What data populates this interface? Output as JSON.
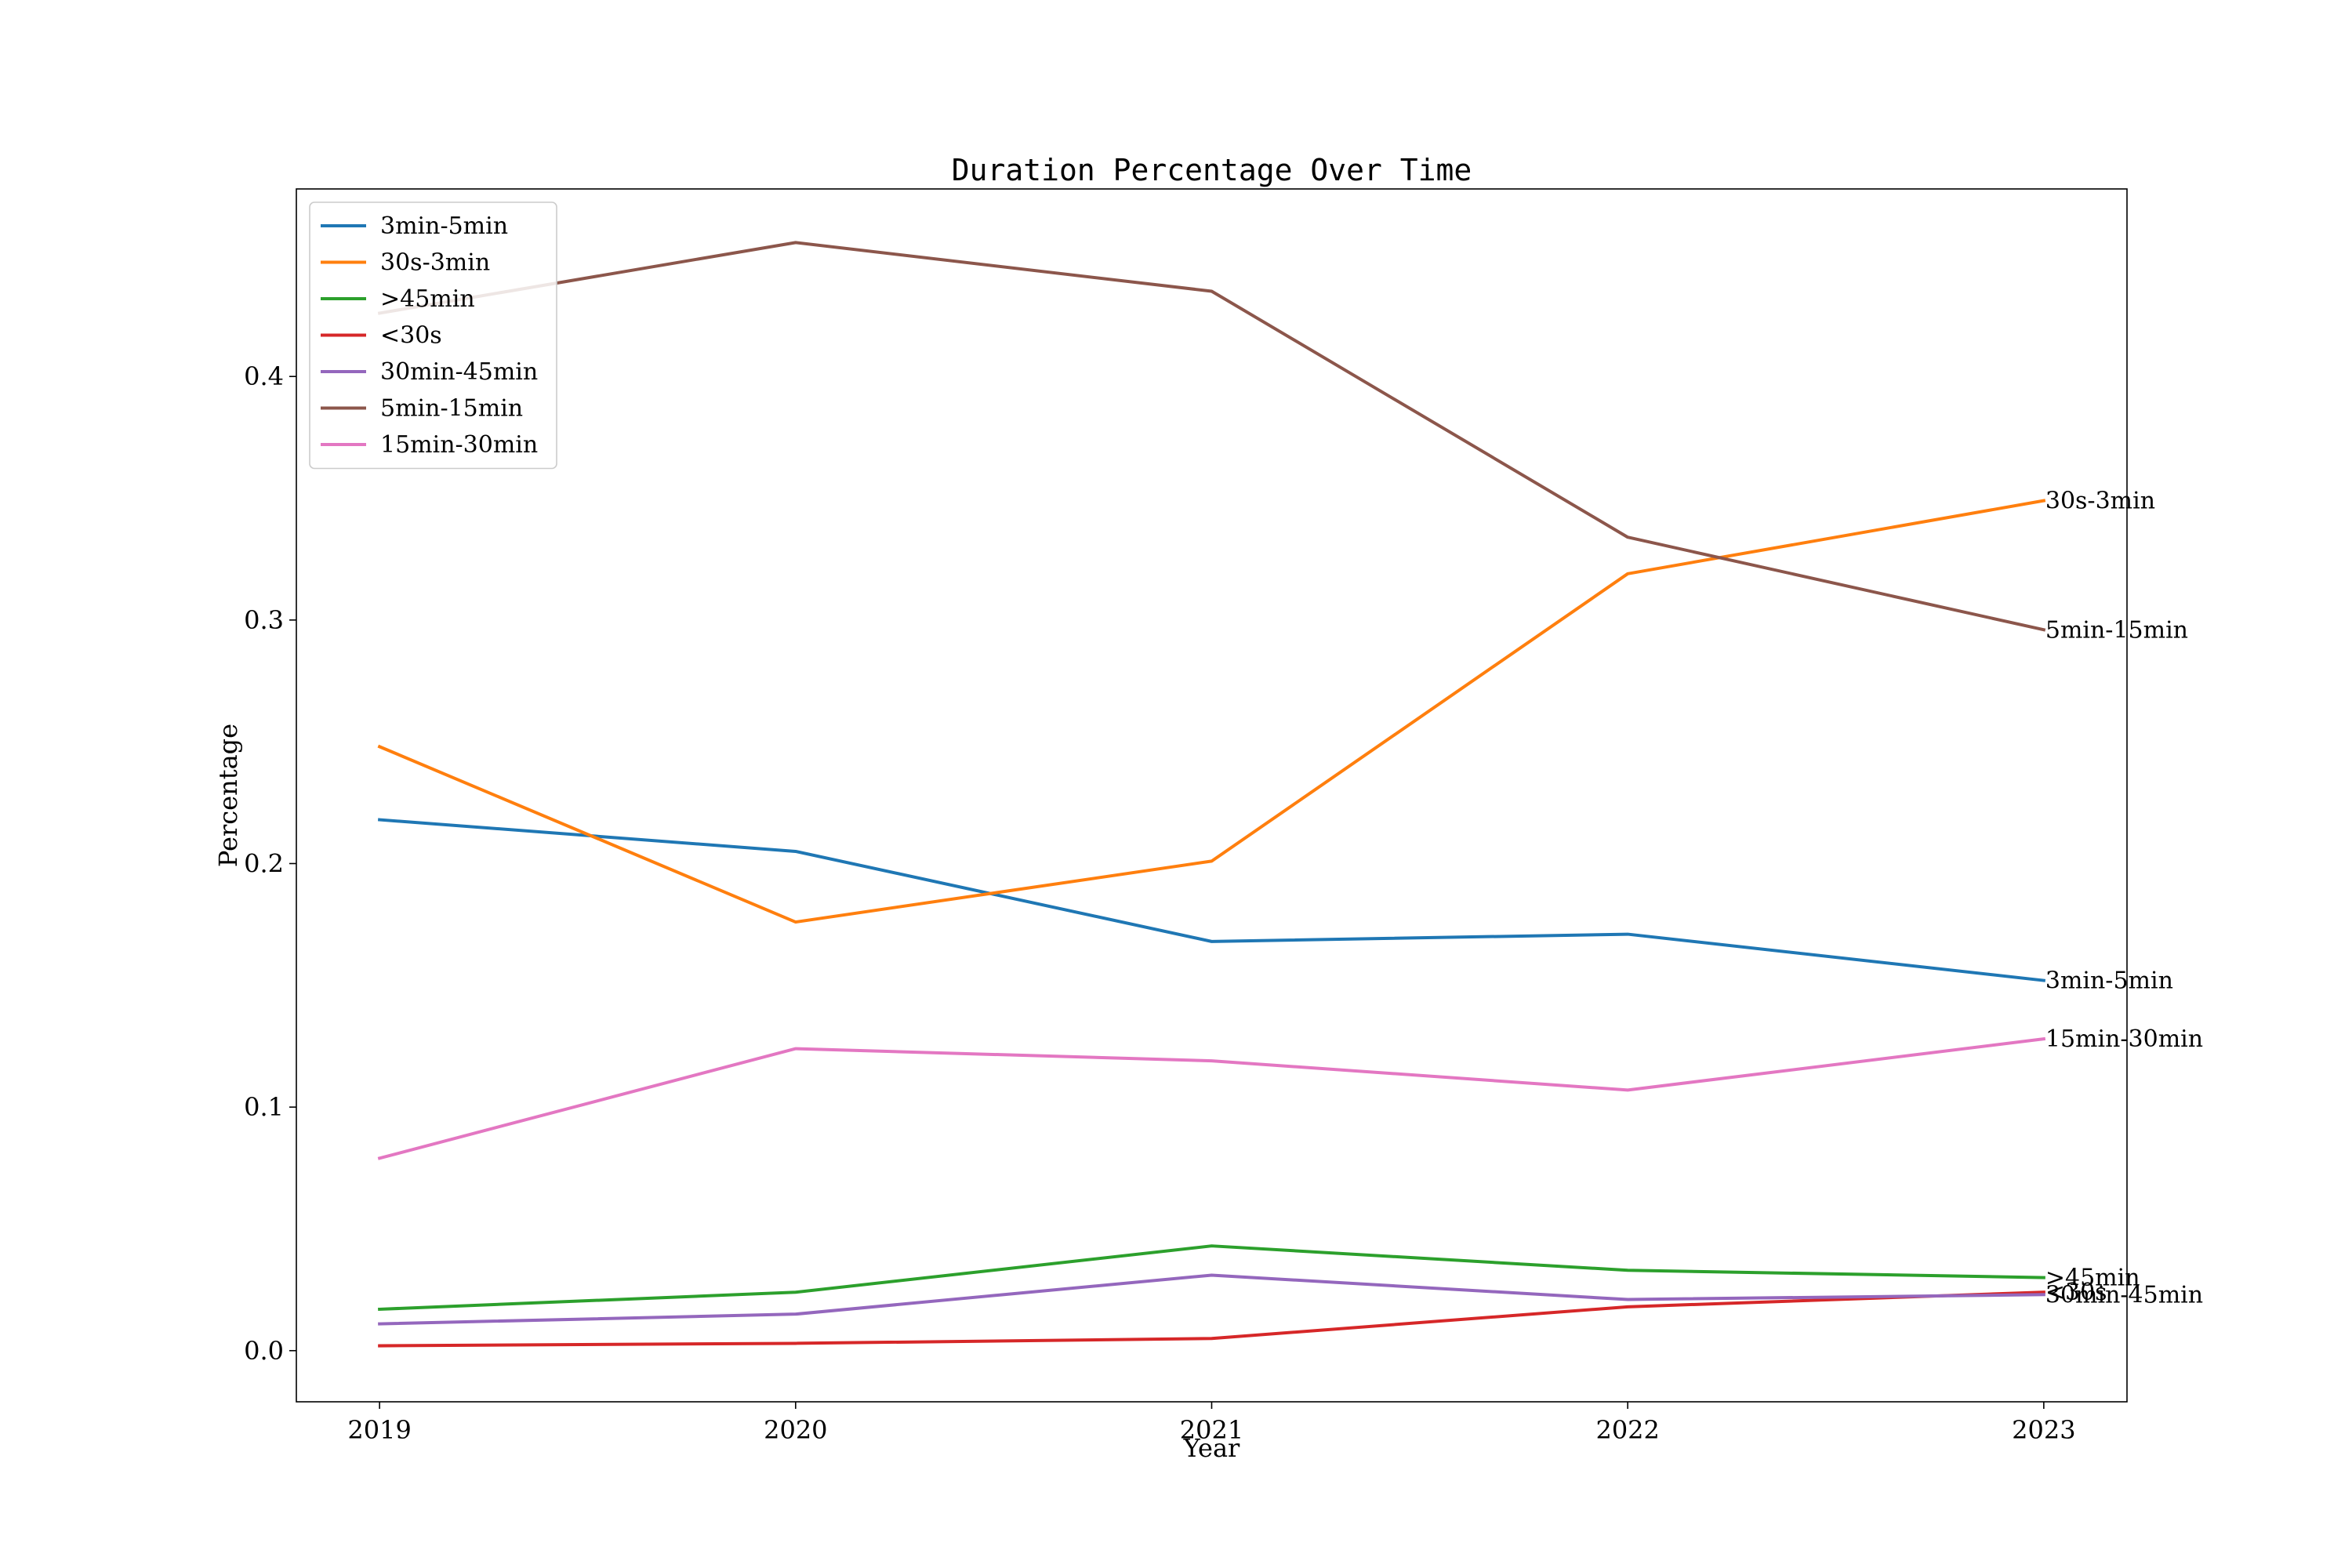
{
  "chart_data": {
    "type": "line",
    "title": "Duration Percentage Over Time",
    "xlabel": "Year",
    "ylabel": "Percentage",
    "x": [
      "2019",
      "2020",
      "2021",
      "2022",
      "2023"
    ],
    "xlim": [
      2018.8,
      2023.2
    ],
    "ylim": [
      -0.021,
      0.477
    ],
    "yticks": [
      "0.0",
      "0.1",
      "0.2",
      "0.3",
      "0.4"
    ],
    "ytick_values": [
      0.0,
      0.1,
      0.2,
      0.3,
      0.4
    ],
    "grid": false,
    "legend_position": "top-left",
    "series": [
      {
        "name": "3min-5min",
        "color": "#1f77b4",
        "values": [
          0.218,
          0.205,
          0.168,
          0.171,
          0.152
        ]
      },
      {
        "name": "30s-3min",
        "color": "#ff7f0e",
        "values": [
          0.248,
          0.176,
          0.201,
          0.319,
          0.349
        ]
      },
      {
        "name": ">45min",
        "color": "#2ca02c",
        "values": [
          0.017,
          0.024,
          0.043,
          0.033,
          0.03
        ]
      },
      {
        "name": "<30s",
        "color": "#d62728",
        "values": [
          0.002,
          0.003,
          0.005,
          0.018,
          0.024
        ]
      },
      {
        "name": "30min-45min",
        "color": "#9467bd",
        "values": [
          0.011,
          0.015,
          0.031,
          0.021,
          0.023
        ]
      },
      {
        "name": "5min-15min",
        "color": "#8c564b",
        "values": [
          0.426,
          0.455,
          0.435,
          0.334,
          0.296
        ]
      },
      {
        "name": "15min-30min",
        "color": "#e377c2",
        "values": [
          0.079,
          0.124,
          0.119,
          0.107,
          0.128
        ]
      }
    ]
  }
}
